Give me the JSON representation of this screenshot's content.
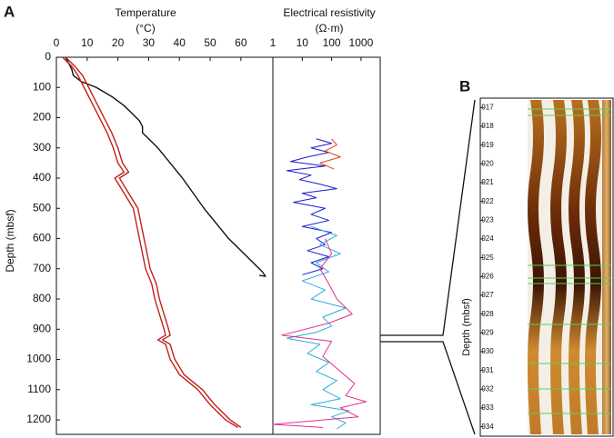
{
  "chart_data": [
    {
      "type": "line",
      "panel": "A",
      "title": "Temperature",
      "subtitle": "(°C)",
      "ylabel": "Depth (mbsf)",
      "xlim": [
        0,
        70.4
      ],
      "xticks": [
        0,
        10,
        20,
        30,
        40,
        50,
        60
      ],
      "ylim": [
        0,
        1248
      ],
      "yticks": [
        0,
        100,
        200,
        300,
        400,
        500,
        600,
        700,
        800,
        900,
        1000,
        1100,
        1200
      ],
      "y_inverted": true,
      "series": [
        {
          "color": "#111111",
          "x": [
            3,
            4,
            5,
            5.5,
            8,
            13,
            18,
            22,
            25,
            27,
            28,
            28,
            30,
            33,
            37,
            41,
            44.5,
            48,
            52,
            56,
            61,
            65,
            67,
            68,
            66
          ],
          "y": [
            0,
            20,
            40,
            60,
            80,
            100,
            130,
            160,
            190,
            210,
            230,
            250,
            270,
            300,
            350,
            400,
            450,
            500,
            550,
            600,
            650,
            690,
            710,
            725,
            722
          ]
        },
        {
          "color": "#c0201a",
          "x": [
            2,
            5,
            7,
            9,
            11.5,
            14,
            16.5,
            18.5,
            20,
            22,
            19,
            22,
            25,
            26,
            27,
            28,
            29,
            31,
            32,
            33.5,
            35,
            35.5,
            33,
            35.5,
            37,
            40,
            46,
            50,
            55,
            59
          ],
          "y": [
            0,
            30,
            60,
            100,
            150,
            200,
            250,
            300,
            350,
            380,
            400,
            450,
            500,
            550,
            600,
            650,
            700,
            750,
            800,
            850,
            900,
            920,
            935,
            950,
            1000,
            1050,
            1100,
            1150,
            1200,
            1225
          ]
        },
        {
          "color": "#c0201a",
          "x": [
            3,
            6,
            8.5,
            10.5,
            13,
            15.5,
            18,
            20,
            21.5,
            23.5,
            20.5,
            23.5,
            26.5,
            27.5,
            28.5,
            29.5,
            30.5,
            32.5,
            33.5,
            35,
            36.5,
            37,
            34.5,
            37,
            38.5,
            41.5,
            47.5,
            51.5,
            56.5,
            60
          ],
          "y": [
            0,
            30,
            60,
            100,
            150,
            200,
            250,
            300,
            350,
            380,
            400,
            450,
            500,
            550,
            600,
            650,
            700,
            750,
            800,
            850,
            900,
            920,
            935,
            950,
            1000,
            1050,
            1100,
            1150,
            1200,
            1225
          ]
        }
      ]
    },
    {
      "type": "line",
      "title": "Electrical resistivity",
      "subtitle": "(Ω·m)",
      "xlog": true,
      "xlim": [
        1,
        4500
      ],
      "xticks": [
        1,
        10,
        100,
        1000
      ],
      "ylim": [
        0,
        1248
      ],
      "y_inverted": true,
      "series": [
        {
          "color": "#1a1acc",
          "x": [
            30,
            100,
            20,
            80,
            15,
            4,
            60,
            3,
            20,
            8,
            40,
            150,
            10,
            30,
            5,
            60,
            20,
            80,
            10,
            100,
            30,
            60,
            15,
            80,
            20,
            50,
            10
          ],
          "y": [
            270,
            285,
            300,
            315,
            330,
            345,
            360,
            375,
            390,
            405,
            420,
            435,
            450,
            465,
            480,
            500,
            520,
            540,
            560,
            580,
            600,
            620,
            640,
            660,
            680,
            700,
            720
          ]
        },
        {
          "color": "#e04020",
          "x": [
            100,
            150,
            60,
            200,
            40,
            120
          ],
          "y": [
            270,
            290,
            310,
            330,
            350,
            370
          ]
        },
        {
          "color": "#33aadd",
          "x": [
            20,
            150,
            40,
            200,
            30,
            80,
            10,
            60,
            20,
            300,
            50,
            100,
            30,
            3,
            40,
            15,
            80,
            30,
            150,
            50,
            200,
            20,
            400,
            100,
            300,
            150
          ],
          "y": [
            560,
            590,
            620,
            650,
            680,
            710,
            740,
            770,
            800,
            830,
            860,
            890,
            910,
            930,
            950,
            980,
            1010,
            1040,
            1070,
            1100,
            1130,
            1150,
            1170,
            1190,
            1210,
            1230
          ]
        },
        {
          "color": "#e0308a",
          "x": [
            60,
            100,
            40,
            80,
            150,
            500,
            80,
            2,
            100,
            50,
            200,
            600,
            300,
            1500,
            200,
            800,
            1,
            50
          ],
          "y": [
            600,
            650,
            700,
            750,
            800,
            850,
            880,
            920,
            940,
            990,
            1040,
            1080,
            1120,
            1140,
            1160,
            1190,
            1215,
            1225
          ]
        }
      ]
    },
    {
      "type": "image",
      "panel": "B",
      "ylabel": "Depth (mbsf)",
      "ylim": [
        916.5,
        934.5
      ],
      "yticks": [
        917,
        918,
        919,
        920,
        921,
        922,
        923,
        924,
        925,
        926,
        927,
        928,
        929,
        930,
        931,
        932,
        933,
        934
      ]
    }
  ]
}
